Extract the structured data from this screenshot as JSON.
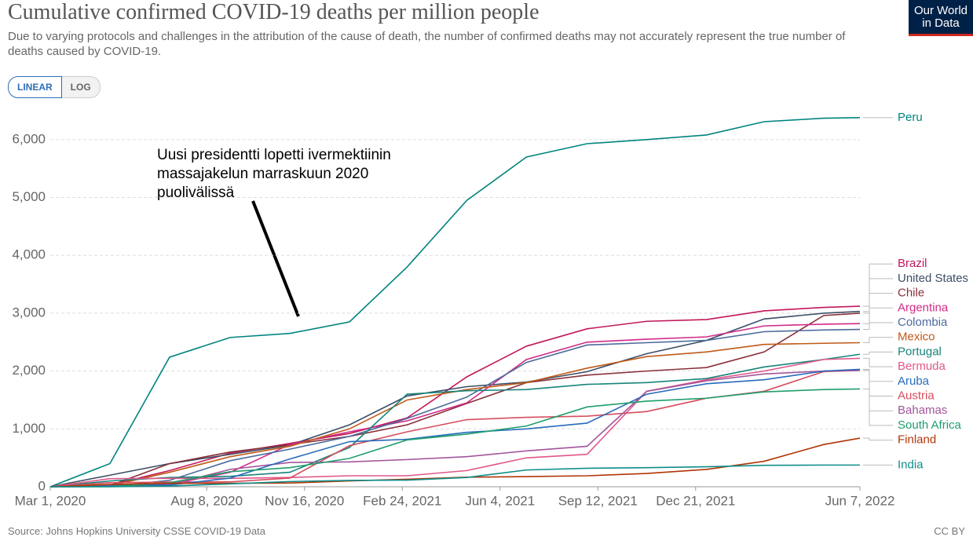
{
  "chart_data": {
    "type": "line",
    "title": "Cumulative confirmed COVID-19 deaths per million people",
    "subtitle": "Due to varying protocols and challenges in the attribution of the cause of death, the number of confirmed deaths may not accurately represent the true number of deaths caused by COVID-19.",
    "logo": [
      "Our World",
      "in Data"
    ],
    "scale_buttons": [
      "LINEAR",
      "LOG"
    ],
    "log_scale": false,
    "annotation": [
      "Uusi presidentti lopetti ivermektiinin",
      "massajakelun marraskuun 2020",
      "puolivälissä"
    ],
    "source": "Source: Johns Hopkins University CSSE COVID-19 Data",
    "license": "CC BY",
    "grid": true,
    "xlim": [
      "2020-03-01",
      "2022-06-07"
    ],
    "xticks": [
      {
        "value": "2020-03-01",
        "label": "Mar 1, 2020"
      },
      {
        "value": "2020-08-08",
        "label": "Aug 8, 2020"
      },
      {
        "value": "2020-11-16",
        "label": "Nov 16, 2020"
      },
      {
        "value": "2021-02-24",
        "label": "Feb 24, 2021"
      },
      {
        "value": "2021-06-04",
        "label": "Jun 4, 2021"
      },
      {
        "value": "2021-09-12",
        "label": "Sep 12, 2021"
      },
      {
        "value": "2021-12-21",
        "label": "Dec 21, 2021"
      },
      {
        "value": "2022-06-07",
        "label": "Jun 7, 2022"
      }
    ],
    "ylim": [
      0,
      6500
    ],
    "yticks": [
      0,
      {
        "value": 1000,
        "label": "1,000"
      },
      {
        "value": 2000,
        "label": "2,000"
      },
      {
        "value": 3000,
        "label": "3,000"
      },
      {
        "value": 4000,
        "label": "4,000"
      },
      {
        "value": 5000,
        "label": "5,000"
      },
      {
        "value": 6000,
        "label": "6,000"
      }
    ],
    "x": [
      "2020-03-01",
      "2020-05-01",
      "2020-07-01",
      "2020-09-01",
      "2020-11-01",
      "2021-01-01",
      "2021-03-01",
      "2021-05-01",
      "2021-07-01",
      "2021-09-01",
      "2021-11-01",
      "2022-01-01",
      "2022-03-01",
      "2022-05-01",
      "2022-06-07"
    ],
    "series": [
      {
        "name": "Peru",
        "color": "#00847e",
        "values": [
          0,
          400,
          2240,
          2580,
          2650,
          2850,
          3800,
          4950,
          5700,
          5930,
          6000,
          6080,
          6310,
          6370,
          6380
        ]
      },
      {
        "name": "Brazil",
        "color": "#c1185a",
        "values": [
          0,
          30,
          280,
          580,
          750,
          920,
          1190,
          1900,
          2430,
          2730,
          2860,
          2890,
          3040,
          3100,
          3120
        ]
      },
      {
        "name": "United States",
        "color": "#3c4e66",
        "values": [
          0,
          200,
          400,
          560,
          720,
          1070,
          1570,
          1730,
          1810,
          1990,
          2300,
          2530,
          2900,
          3000,
          3030
        ]
      },
      {
        "name": "Chile",
        "color": "#883039",
        "values": [
          0,
          20,
          400,
          600,
          730,
          870,
          1070,
          1440,
          1800,
          1930,
          2000,
          2060,
          2330,
          2960,
          3000
        ]
      },
      {
        "name": "Argentina",
        "color": "#d12a87",
        "values": [
          0,
          10,
          40,
          250,
          730,
          950,
          1140,
          1450,
          2200,
          2500,
          2550,
          2590,
          2780,
          2810,
          2820
        ]
      },
      {
        "name": "Colombia",
        "color": "#4c6a9c",
        "values": [
          0,
          5,
          110,
          450,
          650,
          870,
          1180,
          1550,
          2150,
          2450,
          2490,
          2530,
          2680,
          2710,
          2720
        ]
      },
      {
        "name": "Mexico",
        "color": "#c05917",
        "values": [
          0,
          20,
          250,
          520,
          700,
          1000,
          1500,
          1680,
          1800,
          2050,
          2250,
          2330,
          2460,
          2480,
          2490
        ]
      },
      {
        "name": "Portugal",
        "color": "#18847a",
        "values": [
          0,
          100,
          160,
          180,
          250,
          680,
          1600,
          1660,
          1680,
          1770,
          1800,
          1870,
          2070,
          2200,
          2290
        ]
      },
      {
        "name": "Bermuda",
        "color": "#e0578a",
        "values": [
          0,
          140,
          145,
          145,
          160,
          190,
          190,
          280,
          500,
          560,
          1650,
          1850,
          2000,
          2200,
          2220
        ]
      },
      {
        "name": "Austria",
        "color": "#d54e5e",
        "values": [
          0,
          70,
          80,
          85,
          150,
          710,
          950,
          1160,
          1200,
          1220,
          1300,
          1530,
          1650,
          1990,
          2010
        ]
      },
      {
        "name": "Bahamas",
        "color": "#a2559c",
        "values": [
          0,
          25,
          35,
          300,
          420,
          430,
          470,
          520,
          620,
          700,
          1650,
          1830,
          1950,
          2000,
          2010
        ]
      },
      {
        "name": "Aruba",
        "color": "#286bbb",
        "values": [
          0,
          30,
          30,
          150,
          480,
          780,
          820,
          940,
          1000,
          1100,
          1600,
          1780,
          1850,
          2000,
          2030
        ]
      },
      {
        "name": "South Africa",
        "color": "#1f9e6c",
        "values": [
          0,
          3,
          70,
          260,
          330,
          490,
          810,
          910,
          1050,
          1380,
          1480,
          1530,
          1640,
          1680,
          1690
        ]
      },
      {
        "name": "Finland",
        "color": "#b13507",
        "values": [
          0,
          40,
          60,
          60,
          65,
          100,
          130,
          165,
          175,
          190,
          230,
          300,
          440,
          730,
          840
        ]
      },
      {
        "name": "India",
        "color": "#0e8d8a",
        "values": [
          0,
          1,
          13,
          50,
          90,
          110,
          115,
          160,
          290,
          320,
          330,
          345,
          370,
          375,
          375
        ]
      }
    ]
  }
}
